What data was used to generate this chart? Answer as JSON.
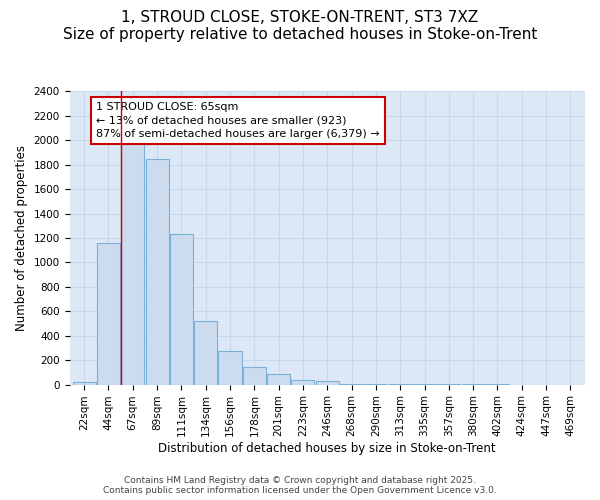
{
  "title": "1, STROUD CLOSE, STOKE-ON-TRENT, ST3 7XZ",
  "subtitle": "Size of property relative to detached houses in Stoke-on-Trent",
  "xlabel": "Distribution of detached houses by size in Stoke-on-Trent",
  "ylabel": "Number of detached properties",
  "categories": [
    "22sqm",
    "44sqm",
    "67sqm",
    "89sqm",
    "111sqm",
    "134sqm",
    "156sqm",
    "178sqm",
    "201sqm",
    "223sqm",
    "246sqm",
    "268sqm",
    "290sqm",
    "313sqm",
    "335sqm",
    "357sqm",
    "380sqm",
    "402sqm",
    "424sqm",
    "447sqm",
    "469sqm"
  ],
  "values": [
    25,
    1160,
    1970,
    1850,
    1230,
    520,
    275,
    145,
    85,
    40,
    30,
    5,
    3,
    2,
    1,
    1,
    1,
    1,
    0,
    0,
    0
  ],
  "bar_color": "#ccdcee",
  "bar_edge_color": "#7ab0d8",
  "grid_color": "#c8d8ea",
  "plot_bg_color": "#dce8f5",
  "fig_bg_color": "#ffffff",
  "red_line_index": 2,
  "annotation_text": "1 STROUD CLOSE: 65sqm\n← 13% of detached houses are smaller (923)\n87% of semi-detached houses are larger (6,379) →",
  "annotation_box_fc": "#ffffff",
  "annotation_box_ec": "#cc0000",
  "ylim": [
    0,
    2400
  ],
  "yticks": [
    0,
    200,
    400,
    600,
    800,
    1000,
    1200,
    1400,
    1600,
    1800,
    2000,
    2200,
    2400
  ],
  "footer": "Contains HM Land Registry data © Crown copyright and database right 2025.\nContains public sector information licensed under the Open Government Licence v3.0.",
  "title_fontsize": 11,
  "subtitle_fontsize": 9,
  "axis_label_fontsize": 8.5,
  "tick_fontsize": 7.5,
  "annot_fontsize": 8,
  "footer_fontsize": 6.5
}
